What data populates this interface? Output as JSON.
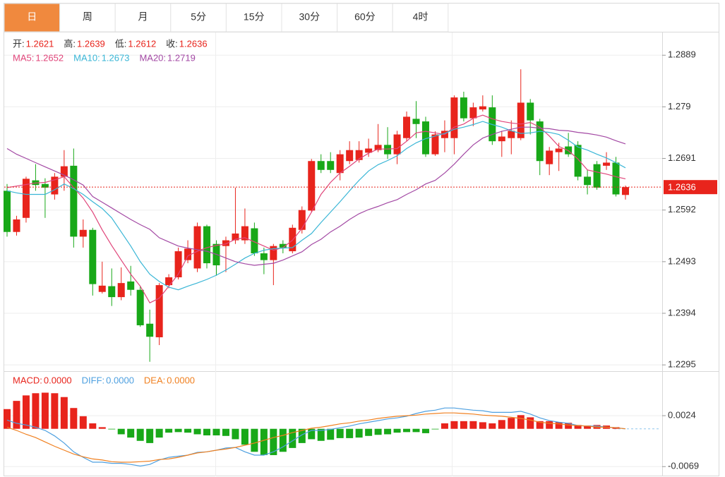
{
  "tabs": [
    "日",
    "周",
    "月",
    "5分",
    "15分",
    "30分",
    "60分",
    "4时"
  ],
  "active_tab": 0,
  "chart_data": [
    {
      "type": "candlestick",
      "legend": [
        {
          "label": "开:",
          "value": "1.2621"
        },
        {
          "label": "高:",
          "value": "1.2639"
        },
        {
          "label": "低:",
          "value": "1.2612"
        },
        {
          "label": "收:",
          "value": "1.2636"
        }
      ],
      "up_color": "#e8241c",
      "down_color": "#18a818",
      "candles": {
        "open": [
          1.2629,
          1.255,
          1.2577,
          1.2649,
          1.2642,
          1.2622,
          1.2656,
          1.2677,
          1.2541,
          1.2554,
          1.2435,
          1.2446,
          1.2425,
          1.2455,
          1.2439,
          1.2374,
          1.2348,
          1.2448,
          1.2463,
          1.2496,
          1.248,
          1.2561,
          1.2527,
          1.2523,
          1.2534,
          1.2534,
          1.2557,
          1.2509,
          1.2496,
          1.2527,
          1.2513,
          1.2554,
          1.2591,
          1.2686,
          1.2686,
          1.2663,
          1.2686,
          1.2688,
          1.2702,
          1.2707,
          1.2717,
          1.2699,
          1.273,
          1.2767,
          1.2762,
          1.2699,
          1.273,
          1.273,
          1.2808,
          1.2768,
          1.2785,
          1.2789,
          1.2724,
          1.273,
          1.273,
          1.2798,
          1.2762,
          1.268,
          1.2703,
          1.2714,
          1.2717,
          1.2656,
          1.268,
          1.2677,
          1.2683,
          1.2621
        ],
        "high": [
          1.2642,
          1.2581,
          1.2656,
          1.268,
          1.2653,
          1.2663,
          1.2707,
          1.271,
          1.2574,
          1.2558,
          1.2493,
          1.248,
          1.2482,
          1.2485,
          1.2446,
          1.2401,
          1.2452,
          1.2469,
          1.252,
          1.2534,
          1.2568,
          1.2564,
          1.2534,
          1.2541,
          1.2635,
          1.2595,
          1.2568,
          1.252,
          1.2527,
          1.2534,
          1.2564,
          1.2599,
          1.269,
          1.2699,
          1.2703,
          1.2707,
          1.2724,
          1.2724,
          1.2729,
          1.2757,
          1.2751,
          1.2744,
          1.2781,
          1.2801,
          1.2771,
          1.2743,
          1.2764,
          1.2812,
          1.2819,
          1.2798,
          1.2812,
          1.2812,
          1.2744,
          1.2764,
          1.2862,
          1.2805,
          1.2767,
          1.2713,
          1.2721,
          1.274,
          1.2724,
          1.2669,
          1.2686,
          1.2703,
          1.2694,
          1.2639
        ],
        "low": [
          1.2541,
          1.2543,
          1.2568,
          1.2629,
          1.2577,
          1.2612,
          1.2629,
          1.252,
          1.252,
          1.2428,
          1.2432,
          1.2408,
          1.2419,
          1.2428,
          1.2368,
          1.2301,
          1.2333,
          1.2442,
          1.2459,
          1.249,
          1.2473,
          1.248,
          1.2466,
          1.2473,
          1.2527,
          1.2527,
          1.2504,
          1.2469,
          1.2448,
          1.2509,
          1.2509,
          1.2547,
          1.2588,
          1.2663,
          1.2663,
          1.2649,
          1.268,
          1.2683,
          1.2694,
          1.2703,
          1.269,
          1.268,
          1.2724,
          1.273,
          1.2694,
          1.2696,
          1.2703,
          1.2699,
          1.2762,
          1.2753,
          1.2781,
          1.2717,
          1.2694,
          1.2699,
          1.2726,
          1.2737,
          1.2659,
          1.2659,
          1.2667,
          1.2694,
          1.2649,
          1.2622,
          1.2631,
          1.2669,
          1.2618,
          1.2612
        ],
        "close": [
          1.255,
          1.2574,
          1.2652,
          1.264,
          1.2635,
          1.2656,
          1.2676,
          1.2541,
          1.2554,
          1.245,
          1.2447,
          1.2425,
          1.2452,
          1.2439,
          1.2371,
          1.2349,
          1.2448,
          1.2463,
          1.2513,
          1.2518,
          1.2561,
          1.249,
          1.2486,
          1.2534,
          1.2547,
          1.2561,
          1.2509,
          1.2496,
          1.2523,
          1.252,
          1.2558,
          1.2592,
          1.2686,
          1.2669,
          1.2669,
          1.2699,
          1.2707,
          1.2707,
          1.271,
          1.2717,
          1.2699,
          1.2737,
          1.2771,
          1.2757,
          1.2699,
          1.2737,
          1.2744,
          1.2808,
          1.2768,
          1.2789,
          1.2791,
          1.2724,
          1.2733,
          1.2744,
          1.2798,
          1.2764,
          1.2686,
          1.2706,
          1.271,
          1.2699,
          1.2656,
          1.264,
          1.2635,
          1.2683,
          1.2622,
          1.2636
        ]
      },
      "series": [
        {
          "label": "MA5:",
          "last": "1.2652",
          "color": "#e0457a",
          "values": [
            1.2635,
            1.2638,
            1.2641,
            1.2644,
            1.2645,
            1.265,
            1.2656,
            1.2635,
            1.2615,
            1.2588,
            1.2554,
            1.2524,
            1.2496,
            1.2469,
            1.2446,
            1.2414,
            1.2423,
            1.2446,
            1.2469,
            1.2504,
            1.2513,
            1.252,
            1.2524,
            1.2527,
            1.2536,
            1.2539,
            1.2531,
            1.2523,
            1.2515,
            1.252,
            1.2534,
            1.2557,
            1.2588,
            1.2622,
            1.2645,
            1.2663,
            1.2676,
            1.269,
            1.2701,
            1.2709,
            1.2709,
            1.271,
            1.2724,
            1.274,
            1.2743,
            1.274,
            1.2737,
            1.2751,
            1.2757,
            1.2768,
            1.2774,
            1.2767,
            1.2762,
            1.2759,
            1.2757,
            1.276,
            1.2751,
            1.2734,
            1.2714,
            1.2706,
            1.269,
            1.2669,
            1.2665,
            1.2661,
            1.2656,
            1.2652
          ]
        },
        {
          "label": "MA10:",
          "last": "1.2673",
          "color": "#3ab6d6",
          "values": [
            1.2629,
            1.2625,
            1.2622,
            1.2622,
            1.2622,
            1.2631,
            1.2642,
            1.2633,
            1.2622,
            1.2608,
            1.2595,
            1.2577,
            1.255,
            1.2523,
            1.2493,
            1.2469,
            1.2455,
            1.2444,
            1.2439,
            1.2446,
            1.2452,
            1.2459,
            1.2467,
            1.2477,
            1.2488,
            1.25,
            1.2509,
            1.2515,
            1.2518,
            1.2519,
            1.252,
            1.2534,
            1.2547,
            1.2568,
            1.2588,
            1.2608,
            1.2629,
            1.2649,
            1.2667,
            1.2679,
            1.2687,
            1.2696,
            1.271,
            1.2721,
            1.2729,
            1.2734,
            1.2739,
            1.2747,
            1.2751,
            1.2756,
            1.2762,
            1.2756,
            1.2751,
            1.2744,
            1.2739,
            1.274,
            1.2743,
            1.2741,
            1.2737,
            1.2726,
            1.2713,
            1.2707,
            1.2699,
            1.2692,
            1.2683,
            1.2673
          ]
        },
        {
          "label": "MA20:",
          "last": "1.2719",
          "color": "#a349a4",
          "values": [
            1.271,
            1.2699,
            1.2691,
            1.2683,
            1.2675,
            1.2667,
            1.2659,
            1.265,
            1.264,
            1.2618,
            1.2607,
            1.2596,
            1.2585,
            1.2574,
            1.2564,
            1.2555,
            1.2539,
            1.2531,
            1.2523,
            1.2519,
            1.2516,
            1.2513,
            1.2507,
            1.25,
            1.2493,
            1.2489,
            1.2486,
            1.2488,
            1.249,
            1.2496,
            1.2504,
            1.2512,
            1.2526,
            1.2536,
            1.255,
            1.2561,
            1.2574,
            1.2585,
            1.2593,
            1.2599,
            1.2606,
            1.2612,
            1.2622,
            1.2631,
            1.2642,
            1.2649,
            1.2663,
            1.268,
            1.2699,
            1.2717,
            1.273,
            1.2737,
            1.2743,
            1.2747,
            1.2751,
            1.2751,
            1.2749,
            1.2748,
            1.2745,
            1.2744,
            1.2741,
            1.2739,
            1.2736,
            1.2732,
            1.2725,
            1.2719
          ]
        }
      ],
      "last_price": 1.2636,
      "ylim": [
        1.2283,
        1.2934
      ],
      "yticks": [
        1.2889,
        1.279,
        1.2691,
        1.2592,
        1.2493,
        1.2394,
        1.2295
      ],
      "grid": true
    },
    {
      "type": "macd",
      "histogram": {
        "label": "MACD:",
        "last": "0.0000",
        "color": "#e8241c",
        "values": [
          0.0036,
          0.0051,
          0.0061,
          0.0065,
          0.0066,
          0.0065,
          0.0058,
          0.0038,
          0.0023,
          0.001,
          0.0003,
          -0.0001,
          -0.001,
          -0.0016,
          -0.0022,
          -0.0026,
          -0.0016,
          -0.0007,
          -0.0006,
          -0.0007,
          -0.001,
          -0.0012,
          -0.0012,
          -0.0013,
          -0.0019,
          -0.0029,
          -0.0042,
          -0.0048,
          -0.0048,
          -0.0042,
          -0.0035,
          -0.0026,
          -0.0019,
          -0.0022,
          -0.002,
          -0.0017,
          -0.0017,
          -0.0016,
          -0.0013,
          -0.0011,
          -0.001,
          -0.0007,
          -0.0006,
          -0.0006,
          -0.0008,
          -0.0001,
          0.001,
          0.0014,
          0.0014,
          0.0014,
          0.0012,
          0.001,
          0.0016,
          0.002,
          0.0025,
          0.0021,
          0.0014,
          0.0014,
          0.0012,
          0.0011,
          0.0007,
          0.0006,
          0.0007,
          0.0006,
          0.0003,
          0
        ]
      },
      "up_color": "#e8241c",
      "down_color": "#18a818",
      "series": [
        {
          "label": "DIFF:",
          "last": "0.0000",
          "color": "#4ea0e0",
          "values": [
            0.0016,
            0.001,
            0.0007,
            0.0003,
            -0.0003,
            -0.0013,
            -0.0026,
            -0.0042,
            -0.0052,
            -0.0061,
            -0.0061,
            -0.0063,
            -0.0063,
            -0.0065,
            -0.0068,
            -0.0065,
            -0.0057,
            -0.0052,
            -0.005,
            -0.0048,
            -0.0043,
            -0.0042,
            -0.0039,
            -0.0035,
            -0.0034,
            -0.0042,
            -0.0048,
            -0.0048,
            -0.0042,
            -0.0033,
            -0.0022,
            -0.0011,
            -0.0003,
            -0.0003,
            -0.0001,
            0.0002,
            0.0005,
            0.0009,
            0.0012,
            0.0015,
            0.0018,
            0.002,
            0.0023,
            0.0028,
            0.0032,
            0.0034,
            0.0038,
            0.0038,
            0.0036,
            0.0034,
            0.0033,
            0.003,
            0.003,
            0.003,
            0.0032,
            0.0027,
            0.002,
            0.0015,
            0.0012,
            0.001,
            0.0006,
            0.0005,
            0.0005,
            0.0003,
            0.0002,
            0
          ]
        },
        {
          "label": "DEA:",
          "last": "0.0000",
          "color": "#f08020",
          "values": [
            0.0003,
            -0.0003,
            -0.001,
            -0.0016,
            -0.0024,
            -0.0032,
            -0.0039,
            -0.0046,
            -0.0051,
            -0.0055,
            -0.0057,
            -0.006,
            -0.0061,
            -0.0061,
            -0.006,
            -0.0059,
            -0.0056,
            -0.0055,
            -0.0052,
            -0.0048,
            -0.0044,
            -0.0042,
            -0.0039,
            -0.0037,
            -0.0034,
            -0.003,
            -0.0026,
            -0.0021,
            -0.0016,
            -0.0012,
            -0.0007,
            -0.0003,
            0.0001,
            0.0003,
            0.0006,
            0.0009,
            0.0011,
            0.0014,
            0.0016,
            0.0019,
            0.0021,
            0.0023,
            0.0024,
            0.0025,
            0.0027,
            0.0028,
            0.0029,
            0.0029,
            0.0028,
            0.0027,
            0.0025,
            0.0024,
            0.0023,
            0.0021,
            0.0019,
            0.0016,
            0.0012,
            0.001,
            0.0009,
            0.0007,
            0.0006,
            0.0005,
            0.0003,
            0.0003,
            0.0002,
            0
          ]
        }
      ],
      "ylim": [
        -0.0088,
        0.0104
      ],
      "yticks": [
        0.0024,
        -0.0069
      ]
    }
  ]
}
